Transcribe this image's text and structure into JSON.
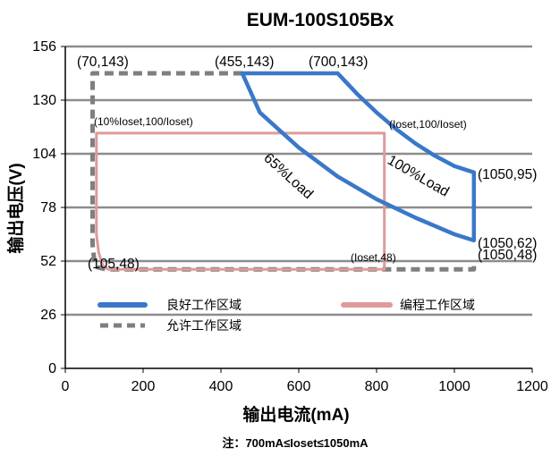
{
  "chart_data": {
    "type": "line",
    "title": "EUM-100S105Bx",
    "xlabel": "输出电流(mA)",
    "ylabel": "输出电压(V)",
    "xlim": [
      0,
      1200
    ],
    "ylim": [
      0,
      156
    ],
    "x_ticks": [
      "0",
      "200",
      "400",
      "600",
      "800",
      "1000",
      "1200"
    ],
    "y_ticks": [
      "0",
      "26",
      "52",
      "78",
      "104",
      "130",
      "156"
    ],
    "grid": "horizontal",
    "series": [
      {
        "name": "良好工作区域",
        "color": "#3a78c9",
        "style": "solid",
        "points": [
          [
            455,
            143
          ],
          [
            700,
            143
          ],
          [
            750,
            133
          ],
          [
            800,
            124
          ],
          [
            850,
            116
          ],
          [
            900,
            109
          ],
          [
            950,
            103
          ],
          [
            1000,
            98
          ],
          [
            1050,
            95
          ],
          [
            1050,
            62
          ],
          [
            1000,
            65
          ],
          [
            900,
            73
          ],
          [
            800,
            82
          ],
          [
            700,
            93
          ],
          [
            600,
            107
          ],
          [
            500,
            124
          ],
          [
            455,
            143
          ]
        ]
      },
      {
        "name": "编程工作区域",
        "color": "#e09a9a",
        "style": "solid",
        "points": [
          [
            80,
            114
          ],
          [
            820,
            114
          ],
          [
            820,
            48
          ],
          [
            110,
            48
          ],
          [
            96,
            50
          ],
          [
            86,
            56
          ],
          [
            80,
            65
          ],
          [
            80,
            114
          ]
        ]
      },
      {
        "name": "允许工作区域",
        "color": "#7f7f7f",
        "style": "dashed",
        "points": [
          [
            455,
            143
          ],
          [
            70,
            143
          ],
          [
            70,
            60
          ],
          [
            74,
            53
          ],
          [
            82,
            49
          ],
          [
            105,
            48
          ],
          [
            1050,
            48
          ],
          [
            1050,
            52
          ]
        ]
      }
    ],
    "annotations": [
      {
        "id": "ann-70-143",
        "text": "(70,143)"
      },
      {
        "id": "ann-455-143",
        "text": "(455,143)"
      },
      {
        "id": "ann-700-143",
        "text": "(700,143)"
      },
      {
        "id": "ann-10pct",
        "text": "(10%Ioset,100/Ioset)"
      },
      {
        "id": "ann-ioset-100",
        "text": "(Ioset,100/Ioset)"
      },
      {
        "id": "ann-1050-95",
        "text": "(1050,95)"
      },
      {
        "id": "ann-1050-62",
        "text": "(1050,62)"
      },
      {
        "id": "ann-1050-48",
        "text": "(1050,48)"
      },
      {
        "id": "ann-105-48",
        "text": "(105,48)"
      },
      {
        "id": "ann-ioset-48",
        "text": "(Ioset,48)"
      },
      {
        "id": "ann-65load",
        "text": "65%Load"
      },
      {
        "id": "ann-100load",
        "text": "100%Load"
      }
    ],
    "legend": {
      "placement": "bottom-inside",
      "entries": [
        "良好工作区域",
        "编程工作区域",
        "允许工作区域"
      ]
    },
    "note": "注：700mA≤Ioset≤1050mA"
  }
}
